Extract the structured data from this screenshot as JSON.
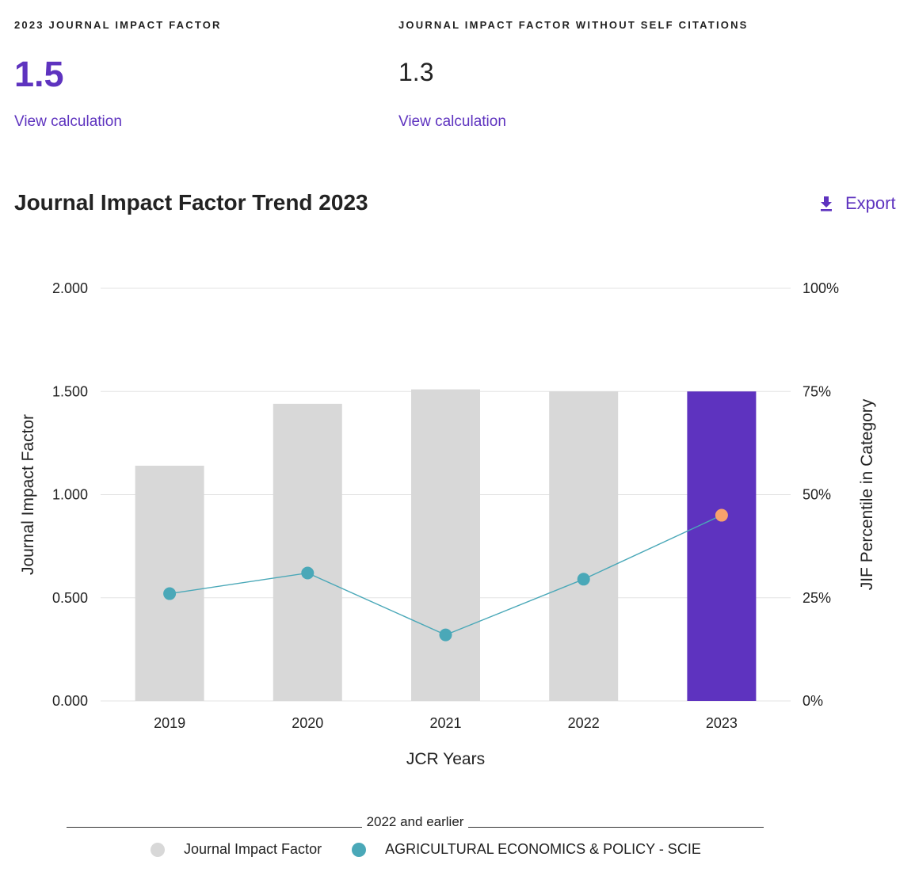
{
  "metrics": {
    "jif": {
      "label": "2023 JOURNAL IMPACT FACTOR",
      "value": "1.5",
      "link": "View calculation"
    },
    "jif_no_self": {
      "label": "JOURNAL IMPACT FACTOR WITHOUT SELF CITATIONS",
      "value": "1.3",
      "link": "View calculation"
    }
  },
  "trend": {
    "title": "Journal Impact Factor Trend 2023",
    "export_label": "Export",
    "export_icon": "download-icon"
  },
  "colors": {
    "bar_default": "#d8d8d8",
    "bar_highlight": "#5e33bf",
    "line": "#4aa8b8",
    "point": "#4aa8b8",
    "point_highlight": "#f8a26c",
    "accent": "#5e33bf"
  },
  "chart_data": {
    "type": "bar",
    "title": "",
    "xlabel": "JCR Years",
    "ylabel": "Journal Impact Factor",
    "y2label": "JIF Percentile in Category",
    "categories": [
      "2019",
      "2020",
      "2021",
      "2022",
      "2023"
    ],
    "ylim": [
      0,
      2
    ],
    "y2lim": [
      0,
      100
    ],
    "yticks": [
      "0.000",
      "0.500",
      "1.000",
      "1.500",
      "2.000"
    ],
    "y2ticks": [
      "0%",
      "25%",
      "50%",
      "75%",
      "100%"
    ],
    "grid": true,
    "highlight_category": "2023",
    "series": [
      {
        "name": "Journal Impact Factor",
        "kind": "bar",
        "axis": "left",
        "values": [
          1.14,
          1.44,
          1.51,
          1.5,
          1.5
        ]
      },
      {
        "name": "AGRICULTURAL ECONOMICS & POLICY - SCIE",
        "kind": "line",
        "axis": "right",
        "values": [
          26,
          31,
          16,
          29.5,
          45
        ]
      }
    ],
    "legend": {
      "caption": "2022 and earlier",
      "position": "bottom",
      "items": [
        {
          "label": "Journal Impact Factor",
          "color": "#d8d8d8"
        },
        {
          "label": "AGRICULTURAL ECONOMICS & POLICY - SCIE",
          "color": "#4aa8b8"
        }
      ]
    }
  }
}
